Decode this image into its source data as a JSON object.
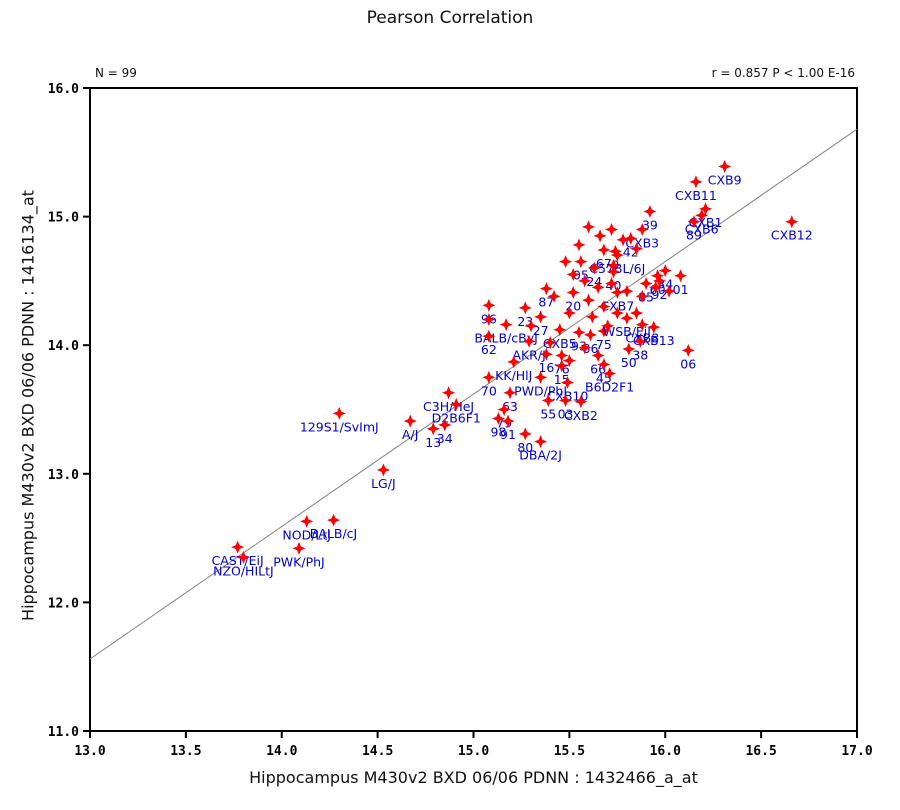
{
  "chart_data": {
    "type": "scatter",
    "title": "Pearson Correlation",
    "n_label": "N = 99",
    "stats_label": "r = 0.857 P < 1.00 E-16",
    "xlabel": "Hippocampus M430v2 BXD 06/06 PDNN : 1432466_a_at",
    "ylabel": "Hippocampus M430v2 BXD 06/06 PDNN : 1416134_at",
    "xlim": [
      13.0,
      17.0
    ],
    "ylim": [
      11.0,
      16.0
    ],
    "x_ticks": [
      13.0,
      13.5,
      14.0,
      14.5,
      15.0,
      15.5,
      16.0,
      16.5,
      17.0
    ],
    "y_ticks": [
      11.0,
      12.0,
      13.0,
      14.0,
      15.0,
      16.0
    ],
    "grid": false,
    "legend_position": "none",
    "colors": {
      "marker": "#FF0000",
      "point_label": "#0000CC",
      "regression_line": "#808080",
      "axis": "#000000",
      "background": "#FFFFFF"
    },
    "regression_line": {
      "x1": 13.0,
      "y1": 11.56,
      "x2": 17.0,
      "y2": 15.68
    },
    "points": [
      {
        "label": "CXB9",
        "x": 16.31,
        "y": 15.39
      },
      {
        "label": "CXB11",
        "x": 16.16,
        "y": 15.27
      },
      {
        "label": "CXB1",
        "x": 16.21,
        "y": 15.06
      },
      {
        "label": "CXB6",
        "x": 16.19,
        "y": 15.01
      },
      {
        "label": "89",
        "x": 16.15,
        "y": 14.96
      },
      {
        "label": "39",
        "x": 15.92,
        "y": 15.04
      },
      {
        "label": "CXB12",
        "x": 16.66,
        "y": 14.96
      },
      {
        "label": "CXB3",
        "x": 15.88,
        "y": 14.9
      },
      {
        "label": "42",
        "x": 15.82,
        "y": 14.83
      },
      {
        "label": "67",
        "x": 15.68,
        "y": 14.74
      },
      {
        "label": "9",
        "x": 15.74,
        "y": 14.73
      },
      {
        "label": "05",
        "x": 15.56,
        "y": 14.65
      },
      {
        "label": "C57BL/6J",
        "x": 15.75,
        "y": 14.7
      },
      {
        "label": "24",
        "x": 15.63,
        "y": 14.6
      },
      {
        "label": "40",
        "x": 15.73,
        "y": 14.57
      },
      {
        "label": "34",
        "x": 16.0,
        "y": 14.58
      },
      {
        "label": "01",
        "x": 16.08,
        "y": 14.54
      },
      {
        "label": "60",
        "x": 15.96,
        "y": 14.54
      },
      {
        "label": "92",
        "x": 15.97,
        "y": 14.5
      },
      {
        "label": "85",
        "x": 15.9,
        "y": 14.48
      },
      {
        "label": "CXB7",
        "x": 15.75,
        "y": 14.41
      },
      {
        "label": "87",
        "x": 15.38,
        "y": 14.44
      },
      {
        "label": "20",
        "x": 15.52,
        "y": 14.41
      },
      {
        "label": "96",
        "x": 15.08,
        "y": 14.31
      },
      {
        "label": "23",
        "x": 15.27,
        "y": 14.29
      },
      {
        "label": "27",
        "x": 15.35,
        "y": 14.22
      },
      {
        "label": "BALB/cByJ",
        "x": 15.17,
        "y": 14.16
      },
      {
        "label": "62",
        "x": 15.08,
        "y": 14.07
      },
      {
        "label": "CXB5",
        "x": 15.45,
        "y": 14.12
      },
      {
        "label": "93",
        "x": 15.55,
        "y": 14.1
      },
      {
        "label": "86",
        "x": 15.61,
        "y": 14.08
      },
      {
        "label": "75",
        "x": 15.68,
        "y": 14.11
      },
      {
        "label": "WSB/EiJ",
        "x": 15.8,
        "y": 14.21
      },
      {
        "label": "CXB8",
        "x": 15.88,
        "y": 14.16
      },
      {
        "label": "CXB13",
        "x": 15.94,
        "y": 14.14
      },
      {
        "label": "AKR/J",
        "x": 15.29,
        "y": 14.03
      },
      {
        "label": "38",
        "x": 15.87,
        "y": 14.03
      },
      {
        "label": "50",
        "x": 15.81,
        "y": 13.97
      },
      {
        "label": "06",
        "x": 16.12,
        "y": 13.96
      },
      {
        "label": "KK/HlJ",
        "x": 15.21,
        "y": 13.87
      },
      {
        "label": "16",
        "x": 15.38,
        "y": 13.93
      },
      {
        "label": "76",
        "x": 15.46,
        "y": 13.92
      },
      {
        "label": "66",
        "x": 15.65,
        "y": 13.92
      },
      {
        "label": "15",
        "x": 15.46,
        "y": 13.84
      },
      {
        "label": "45",
        "x": 15.68,
        "y": 13.85
      },
      {
        "label": "B6D2F1",
        "x": 15.71,
        "y": 13.78
      },
      {
        "label": "PWD/PhJ",
        "x": 15.35,
        "y": 13.75
      },
      {
        "label": "CXB10",
        "x": 15.49,
        "y": 13.71
      },
      {
        "label": "70",
        "x": 15.08,
        "y": 13.75
      },
      {
        "label": "63",
        "x": 15.19,
        "y": 13.63
      },
      {
        "label": "C3H/HeJ",
        "x": 14.87,
        "y": 13.63
      },
      {
        "label": "D2B6F1",
        "x": 14.91,
        "y": 13.54
      },
      {
        "label": "79",
        "x": 15.16,
        "y": 13.5
      },
      {
        "label": "98",
        "x": 15.13,
        "y": 13.43
      },
      {
        "label": "91",
        "x": 15.18,
        "y": 13.41
      },
      {
        "label": "55",
        "x": 15.39,
        "y": 13.57
      },
      {
        "label": "03",
        "x": 15.48,
        "y": 13.57
      },
      {
        "label": "CXB2",
        "x": 15.56,
        "y": 13.56
      },
      {
        "label": "A/J",
        "x": 14.67,
        "y": 13.41
      },
      {
        "label": "34",
        "x": 14.85,
        "y": 13.38
      },
      {
        "label": "13",
        "x": 14.79,
        "y": 13.35
      },
      {
        "label": "80",
        "x": 15.27,
        "y": 13.31
      },
      {
        "label": "DBA/2J",
        "x": 15.35,
        "y": 13.25
      },
      {
        "label": "LG/J",
        "x": 14.53,
        "y": 13.03
      },
      {
        "label": "129S1/SvImJ",
        "x": 14.3,
        "y": 13.47
      },
      {
        "label": "NOD/LtJ",
        "x": 14.13,
        "y": 12.63
      },
      {
        "label": "BALB/cJ",
        "x": 14.27,
        "y": 12.64
      },
      {
        "label": "PWK/PhJ",
        "x": 14.09,
        "y": 12.42
      },
      {
        "label": "CAST/EiJ",
        "x": 13.77,
        "y": 12.43
      },
      {
        "label": "NZO/HILtJ",
        "x": 13.8,
        "y": 12.35
      },
      {
        "label": "",
        "x": 15.6,
        "y": 14.92
      },
      {
        "label": "",
        "x": 15.72,
        "y": 14.9
      },
      {
        "label": "",
        "x": 15.66,
        "y": 14.85
      },
      {
        "label": "",
        "x": 15.78,
        "y": 14.82
      },
      {
        "label": "",
        "x": 15.85,
        "y": 14.75
      },
      {
        "label": "",
        "x": 15.55,
        "y": 14.78
      },
      {
        "label": "",
        "x": 15.48,
        "y": 14.65
      },
      {
        "label": "",
        "x": 15.52,
        "y": 14.55
      },
      {
        "label": "",
        "x": 15.58,
        "y": 14.5
      },
      {
        "label": "",
        "x": 15.65,
        "y": 14.45
      },
      {
        "label": "",
        "x": 15.72,
        "y": 14.48
      },
      {
        "label": "",
        "x": 15.8,
        "y": 14.42
      },
      {
        "label": "",
        "x": 15.88,
        "y": 14.38
      },
      {
        "label": "",
        "x": 15.95,
        "y": 14.45
      },
      {
        "label": "",
        "x": 16.02,
        "y": 14.42
      },
      {
        "label": "",
        "x": 15.42,
        "y": 14.38
      },
      {
        "label": "",
        "x": 15.6,
        "y": 14.35
      },
      {
        "label": "",
        "x": 15.68,
        "y": 14.3
      },
      {
        "label": "",
        "x": 15.75,
        "y": 14.25
      },
      {
        "label": "",
        "x": 15.5,
        "y": 14.25
      },
      {
        "label": "",
        "x": 15.62,
        "y": 14.22
      },
      {
        "label": "",
        "x": 15.7,
        "y": 14.15
      },
      {
        "label": "",
        "x": 15.85,
        "y": 14.25
      },
      {
        "label": "",
        "x": 15.3,
        "y": 14.15
      },
      {
        "label": "",
        "x": 15.4,
        "y": 14.02
      },
      {
        "label": "",
        "x": 15.58,
        "y": 13.98
      },
      {
        "label": "",
        "x": 15.5,
        "y": 13.88
      },
      {
        "label": "",
        "x": 15.08,
        "y": 14.2
      },
      {
        "label": "",
        "x": 15.73,
        "y": 14.62
      }
    ]
  }
}
